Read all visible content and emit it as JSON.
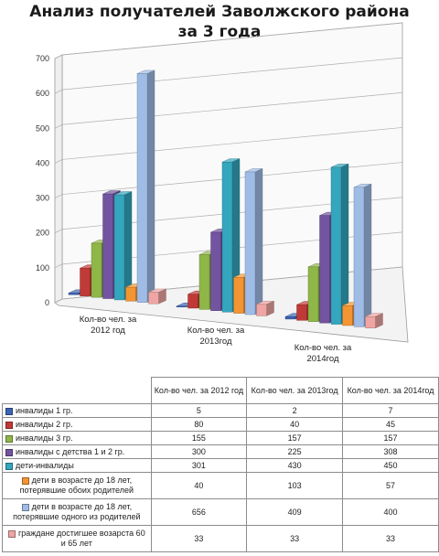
{
  "chart_data": {
    "type": "bar",
    "title": "Анализ получателей Заволжского района за 3 года",
    "categories": [
      "Кол-во чел. за 2012 год",
      "Кол-во чел. за 2013год",
      "Кол-во чел. за 2014год"
    ],
    "table_headers": [
      "Кол-во чел. за 2012 год",
      "Кол-во чел. за 2013год",
      "Кол-во чел. за 2014год"
    ],
    "ylim": [
      0,
      700
    ],
    "yticks": [
      "0",
      "100",
      "200",
      "300",
      "400",
      "500",
      "600",
      "700"
    ],
    "grid": true,
    "legend": "table-below",
    "series": [
      {
        "name": "инвалиды 1 гр.",
        "color": "#3c64b4",
        "values": [
          5,
          2,
          7
        ]
      },
      {
        "name": "инвалиды 2 гр.",
        "color": "#c03a37",
        "values": [
          80,
          40,
          45
        ]
      },
      {
        "name": "инвалиды 3 гр.",
        "color": "#8fb748",
        "values": [
          155,
          157,
          157
        ]
      },
      {
        "name": "инвалиды с детства 1 и 2 гр.",
        "color": "#7354a0",
        "values": [
          300,
          225,
          308
        ]
      },
      {
        "name": "дети-инвалиды",
        "color": "#34a6be",
        "values": [
          301,
          430,
          450
        ]
      },
      {
        "name": "дети в возрасте до 18 лет, потерявшие обоих родителей",
        "color": "#f39533",
        "values": [
          40,
          103,
          57
        ]
      },
      {
        "name": "дети в возрасте до 18 лет, потерявшие одного из родителей",
        "color": "#9fbce6",
        "values": [
          656,
          409,
          400
        ]
      },
      {
        "name": "граждане достигшее возарста 60 и 65 лет",
        "color": "#eea5a3",
        "values": [
          33,
          33,
          33
        ]
      }
    ]
  }
}
